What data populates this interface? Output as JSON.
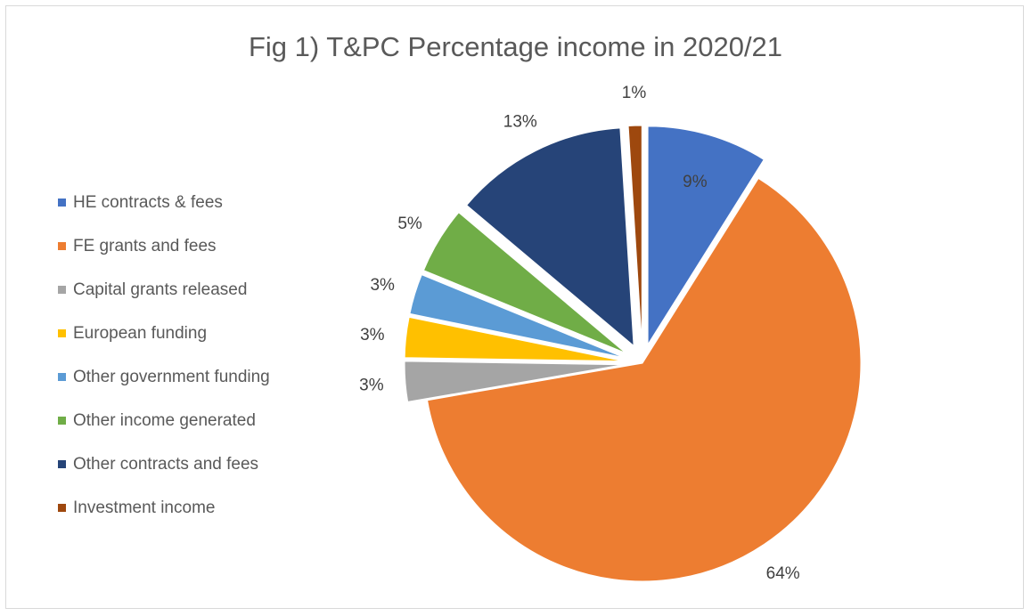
{
  "chart_data": {
    "type": "pie",
    "title": "Fig 1) T&PC Percentage income in 2020/21",
    "legend_position": "left",
    "exploded": true,
    "slices": [
      {
        "label": "HE contracts & fees",
        "value": 9,
        "value_label": "9%",
        "color": "#4472C4"
      },
      {
        "label": "FE grants and fees",
        "value": 64,
        "value_label": "64%",
        "color": "#ED7D31"
      },
      {
        "label": "Capital grants released",
        "value": 3,
        "value_label": "3%",
        "color": "#A5A5A5"
      },
      {
        "label": "European funding",
        "value": 3,
        "value_label": "3%",
        "color": "#FFC000"
      },
      {
        "label": "Other government funding",
        "value": 3,
        "value_label": "3%",
        "color": "#5B9BD5"
      },
      {
        "label": "Other income generated",
        "value": 5,
        "value_label": "5%",
        "color": "#70AD47"
      },
      {
        "label": "Other contracts and fees",
        "value": 13,
        "value_label": "13%",
        "color": "#264478"
      },
      {
        "label": "Investment income",
        "value": 1,
        "value_label": "1%",
        "color": "#9E480E"
      }
    ]
  }
}
